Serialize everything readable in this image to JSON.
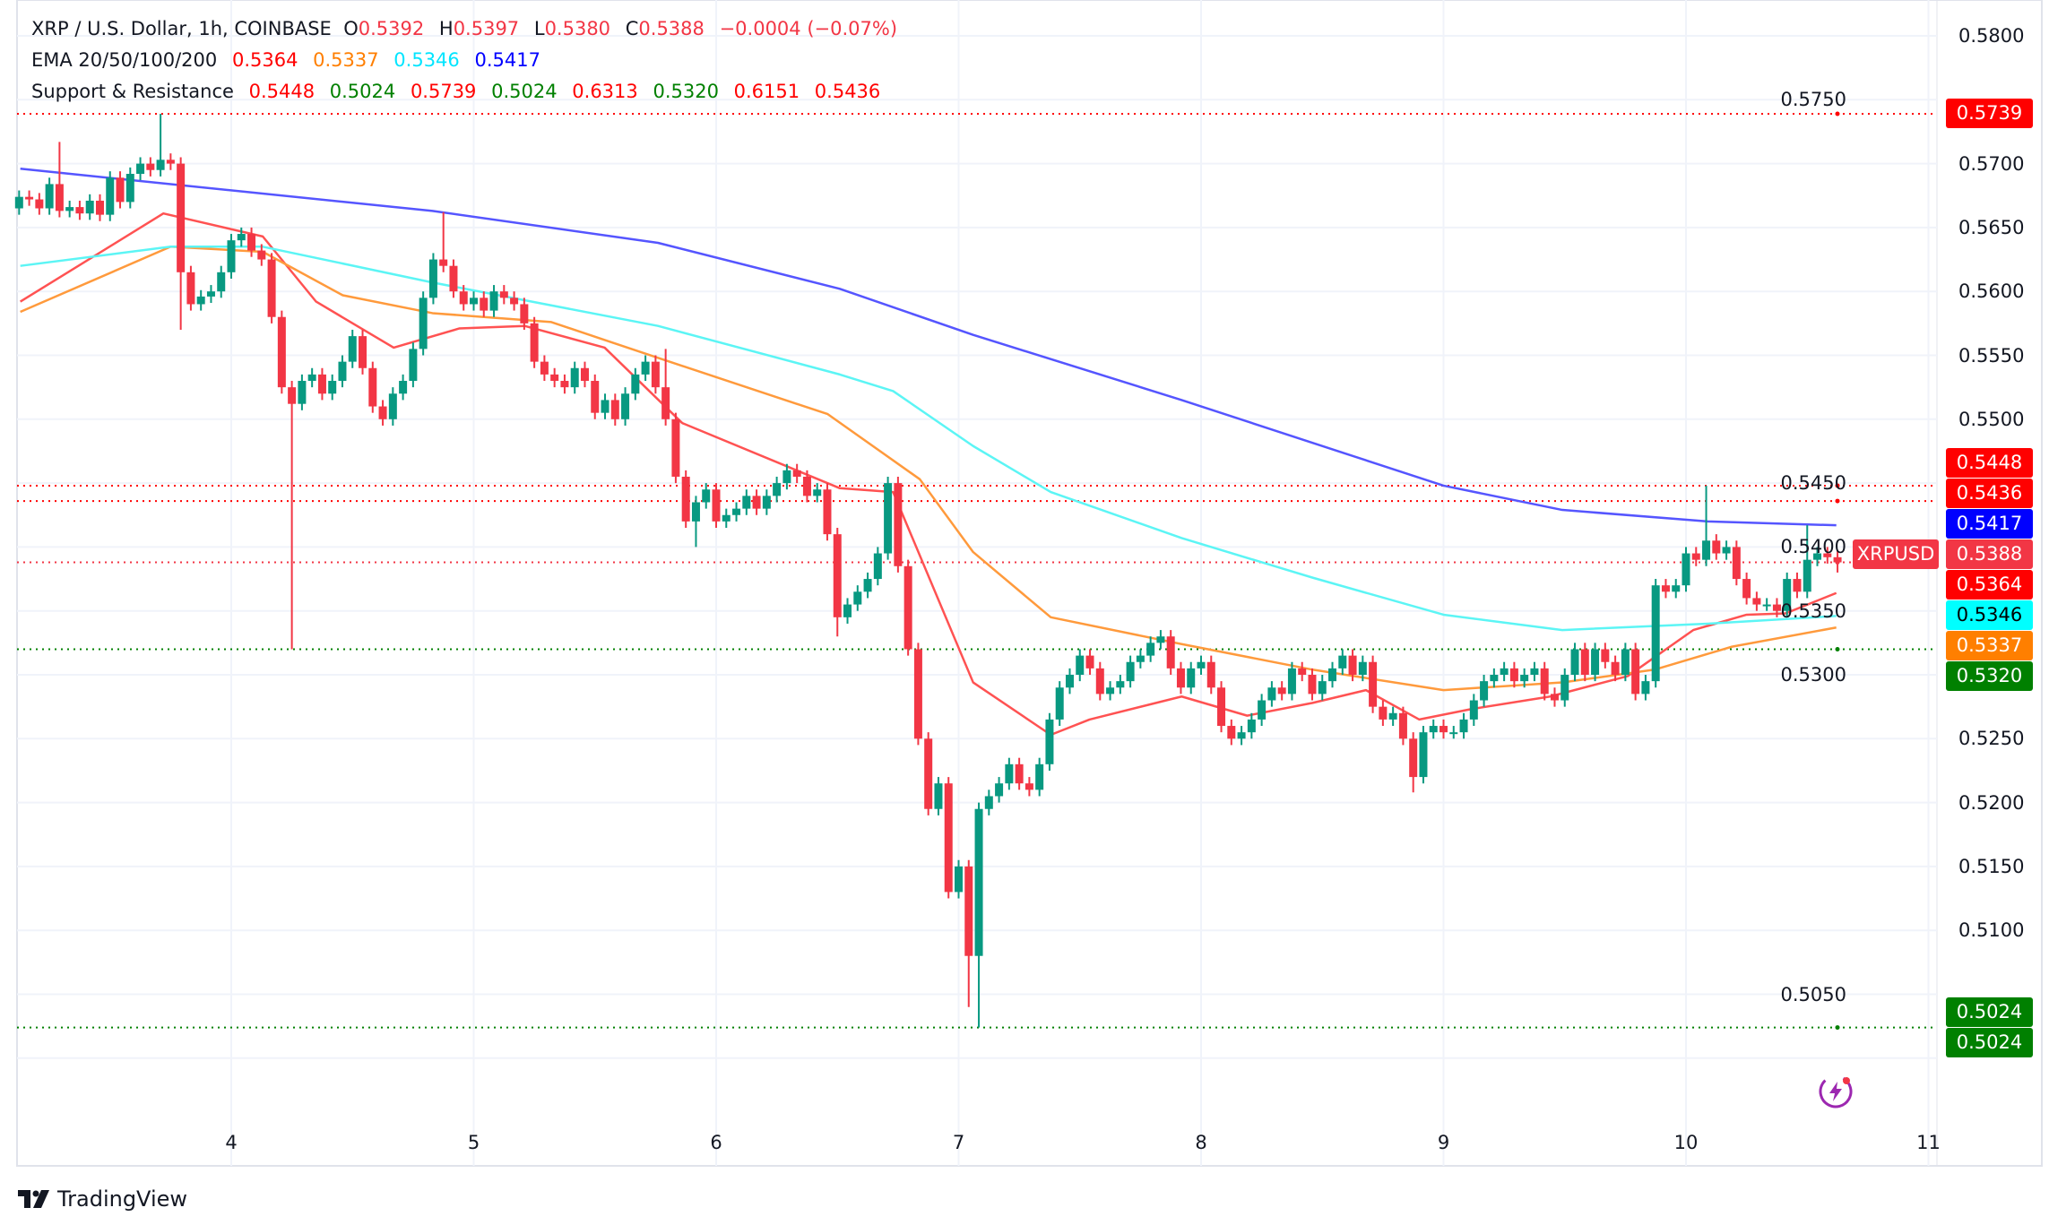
{
  "legend": {
    "symbol": "XRP / U.S. Dollar, 1h, COINBASE",
    "o_label": "O",
    "o": "0.5392",
    "h_label": "H",
    "h": "0.5397",
    "l_label": "L",
    "l": "0.5380",
    "c_label": "C",
    "c": "0.5388",
    "change": "−0.0004 (−0.07%)",
    "ema_label": "EMA 20/50/100/200",
    "ema_values": [
      "0.5364",
      "0.5337",
      "0.5346",
      "0.5417"
    ],
    "sr_label": "Support & Resistance",
    "sr_values": [
      "0.5448",
      "0.5024",
      "0.5739",
      "0.5024",
      "0.6313",
      "0.5320",
      "0.6151",
      "0.5436"
    ]
  },
  "colors": {
    "up": "#089981",
    "down": "#F23645",
    "ema20": "#FF5252",
    "ema50": "#FF9A3C",
    "ema100": "#5CF5F5",
    "ema200": "#5555FF",
    "resistance": "#FF0000",
    "support": "#008000",
    "last": "#F23645"
  },
  "price_labels": [
    {
      "value": "0.5739",
      "price": 0.5739,
      "bg": "#FF0000",
      "fg": "#FFFFFF"
    },
    {
      "value": "0.5448",
      "price": 0.5448,
      "bg": "#FF0000",
      "fg": "#FFFFFF"
    },
    {
      "value": "0.5436",
      "price": 0.5436,
      "bg": "#FF0000",
      "fg": "#FFFFFF"
    },
    {
      "value": "0.5417",
      "price": 0.5417,
      "bg": "#0000FF",
      "fg": "#FFFFFF"
    },
    {
      "value": "0.5388",
      "price": 0.5388,
      "bg": "#F23645",
      "fg": "#FFFFFF",
      "tag": "XRPUSD"
    },
    {
      "value": "0.5364",
      "price": 0.5364,
      "bg": "#FF0000",
      "fg": "#FFFFFF"
    },
    {
      "value": "0.5346",
      "price": 0.5346,
      "bg": "#00FFFF",
      "fg": "#000000"
    },
    {
      "value": "0.5337",
      "price": 0.5337,
      "bg": "#FF7F00",
      "fg": "#FFFFFF"
    },
    {
      "value": "0.5320",
      "price": 0.532,
      "bg": "#008000",
      "fg": "#FFFFFF"
    },
    {
      "value": "0.5024",
      "price": 0.5024,
      "bg": "#008000",
      "fg": "#FFFFFF"
    },
    {
      "value": "0.5024",
      "price": 0.5024,
      "bg": "#008000",
      "fg": "#FFFFFF"
    }
  ],
  "brand": "TradingView",
  "chart_data": {
    "type": "candlestick",
    "title": "XRP / U.S. Dollar, 1h, COINBASE",
    "x_unit": "day of month",
    "x_ticks": [
      "4",
      "5",
      "6",
      "7",
      "8",
      "9",
      "10",
      "11"
    ],
    "y_ticks": [
      "0.5800",
      "0.5750",
      "0.5700",
      "0.5650",
      "0.5600",
      "0.5550",
      "0.5500",
      "0.5450",
      "0.5400",
      "0.5350",
      "0.5300",
      "0.5250",
      "0.5200",
      "0.5150",
      "0.5100",
      "0.5050"
    ],
    "ylim": [
      0.495,
      0.583
    ],
    "xlim": [
      3.08,
      11.0
    ],
    "grid": true,
    "first_bar": 3.125,
    "bar_interval": "1h",
    "first_open": 0.5665,
    "close": [
      0.5674,
      0.5672,
      0.5665,
      0.5684,
      0.5663,
      0.5666,
      0.5661,
      0.5671,
      0.566,
      0.5689,
      0.567,
      0.5692,
      0.57,
      0.5695,
      0.5703,
      0.57,
      0.5615,
      0.559,
      0.5596,
      0.56,
      0.5615,
      0.564,
      0.5645,
      0.5632,
      0.5625,
      0.558,
      0.5525,
      0.5512,
      0.553,
      0.5535,
      0.552,
      0.553,
      0.5545,
      0.5565,
      0.554,
      0.551,
      0.55,
      0.552,
      0.553,
      0.5555,
      0.5595,
      0.5625,
      0.562,
      0.56,
      0.559,
      0.5595,
      0.5585,
      0.56,
      0.5595,
      0.559,
      0.5575,
      0.5545,
      0.5535,
      0.553,
      0.5525,
      0.554,
      0.553,
      0.5505,
      0.5515,
      0.55,
      0.552,
      0.5535,
      0.5545,
      0.5525,
      0.55,
      0.5455,
      0.542,
      0.5435,
      0.5445,
      0.542,
      0.5425,
      0.543,
      0.544,
      0.543,
      0.544,
      0.545,
      0.546,
      0.5455,
      0.544,
      0.5445,
      0.541,
      0.5345,
      0.5355,
      0.5365,
      0.5375,
      0.5395,
      0.545,
      0.5385,
      0.532,
      0.525,
      0.5195,
      0.5215,
      0.513,
      0.515,
      0.508,
      0.5195,
      0.5205,
      0.5215,
      0.523,
      0.5215,
      0.521,
      0.523,
      0.5265,
      0.529,
      0.53,
      0.5315,
      0.5305,
      0.5285,
      0.529,
      0.5295,
      0.531,
      0.5315,
      0.5325,
      0.533,
      0.5305,
      0.529,
      0.5305,
      0.531,
      0.529,
      0.526,
      0.525,
      0.5255,
      0.5265,
      0.528,
      0.529,
      0.5285,
      0.5305,
      0.53,
      0.5285,
      0.5295,
      0.5305,
      0.5315,
      0.53,
      0.531,
      0.5275,
      0.5265,
      0.527,
      0.525,
      0.522,
      0.5255,
      0.526,
      0.5255,
      0.5255,
      0.5265,
      0.528,
      0.5295,
      0.53,
      0.5305,
      0.5295,
      0.53,
      0.5305,
      0.5285,
      0.528,
      0.53,
      0.532,
      0.53,
      0.532,
      0.531,
      0.53,
      0.532,
      0.5285,
      0.5295,
      0.537,
      0.5365,
      0.537,
      0.5395,
      0.539,
      0.5405,
      0.5395,
      0.54,
      0.5375,
      0.536,
      0.5355,
      0.5355,
      0.535,
      0.5375,
      0.5365,
      0.539,
      0.5395,
      0.5392,
      0.5388
    ],
    "notable_highs": {
      "4": 0.5717,
      "14": 0.5739,
      "42": 0.5662,
      "64": 0.5555,
      "86": 0.5455,
      "167": 0.5448,
      "177": 0.5417,
      "180": 0.5397
    },
    "notable_lows": {
      "16": 0.557,
      "27": 0.532,
      "67": 0.54,
      "81": 0.533,
      "94": 0.504,
      "95": 0.5024,
      "138": 0.5208,
      "160": 0.528,
      "180": 0.538
    },
    "series": [
      {
        "name": "EMA 20",
        "color_key": "ema20",
        "points": [
          [
            3.13,
            0.5592
          ],
          [
            3.72,
            0.5661
          ],
          [
            4.13,
            0.5643
          ],
          [
            4.35,
            0.5592
          ],
          [
            4.67,
            0.5556
          ],
          [
            4.94,
            0.5571
          ],
          [
            5.21,
            0.5573
          ],
          [
            5.54,
            0.5556
          ],
          [
            5.86,
            0.5497
          ],
          [
            6.51,
            0.5446
          ],
          [
            6.73,
            0.5443
          ],
          [
            7.06,
            0.5294
          ],
          [
            7.38,
            0.5253
          ],
          [
            7.54,
            0.5265
          ],
          [
            7.92,
            0.5283
          ],
          [
            8.19,
            0.5268
          ],
          [
            8.46,
            0.5278
          ],
          [
            8.68,
            0.5288
          ],
          [
            8.9,
            0.5265
          ],
          [
            9.11,
            0.5273
          ],
          [
            9.44,
            0.5283
          ],
          [
            9.76,
            0.5299
          ],
          [
            10.03,
            0.5335
          ],
          [
            10.25,
            0.5347
          ],
          [
            10.41,
            0.5348
          ],
          [
            10.62,
            0.5364
          ]
        ]
      },
      {
        "name": "EMA 50",
        "color_key": "ema50",
        "points": [
          [
            3.13,
            0.5584
          ],
          [
            3.75,
            0.5635
          ],
          [
            4.13,
            0.5631
          ],
          [
            4.46,
            0.5597
          ],
          [
            4.83,
            0.5583
          ],
          [
            5.32,
            0.5576
          ],
          [
            5.76,
            0.5548
          ],
          [
            6.46,
            0.5504
          ],
          [
            6.84,
            0.5453
          ],
          [
            7.06,
            0.5396
          ],
          [
            7.38,
            0.5345
          ],
          [
            7.92,
            0.5324
          ],
          [
            8.46,
            0.5304
          ],
          [
            9.0,
            0.5288
          ],
          [
            9.49,
            0.5294
          ],
          [
            9.87,
            0.5304
          ],
          [
            10.19,
            0.5322
          ],
          [
            10.62,
            0.5337
          ]
        ]
      },
      {
        "name": "EMA 100",
        "color_key": "ema100",
        "points": [
          [
            3.13,
            0.562
          ],
          [
            3.75,
            0.5635
          ],
          [
            4.13,
            0.5635
          ],
          [
            4.83,
            0.5607
          ],
          [
            5.76,
            0.5573
          ],
          [
            6.51,
            0.5535
          ],
          [
            6.73,
            0.5522
          ],
          [
            7.06,
            0.5479
          ],
          [
            7.38,
            0.5443
          ],
          [
            7.92,
            0.5407
          ],
          [
            8.46,
            0.5376
          ],
          [
            9.0,
            0.5347
          ],
          [
            9.49,
            0.5335
          ],
          [
            10.09,
            0.534
          ],
          [
            10.62,
            0.5346
          ]
        ]
      },
      {
        "name": "EMA 200",
        "color_key": "ema200",
        "points": [
          [
            3.13,
            0.5696
          ],
          [
            4.83,
            0.5663
          ],
          [
            5.76,
            0.5638
          ],
          [
            6.51,
            0.5602
          ],
          [
            7.06,
            0.5566
          ],
          [
            7.92,
            0.5515
          ],
          [
            9.0,
            0.5448
          ],
          [
            9.49,
            0.5429
          ],
          [
            10.09,
            0.542
          ],
          [
            10.62,
            0.5417
          ]
        ]
      }
    ],
    "levels": [
      {
        "price": 0.5739,
        "kind": "resistance"
      },
      {
        "price": 0.5448,
        "kind": "resistance"
      },
      {
        "price": 0.5436,
        "kind": "resistance"
      },
      {
        "price": 0.5388,
        "kind": "last"
      },
      {
        "price": 0.532,
        "kind": "support"
      },
      {
        "price": 0.5024,
        "kind": "support"
      }
    ]
  }
}
